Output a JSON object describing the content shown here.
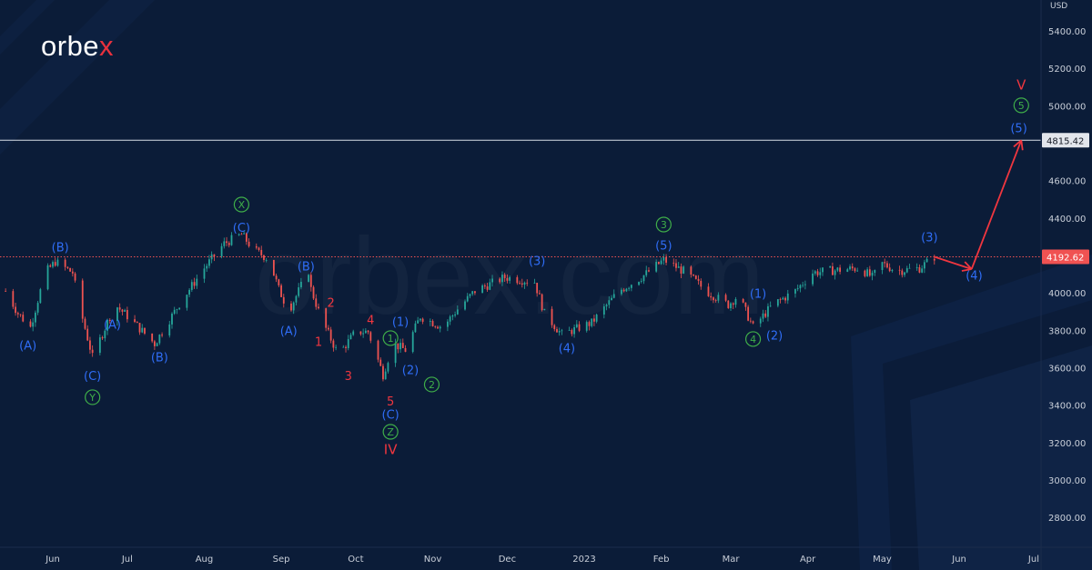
{
  "brand": {
    "logo_text": "orbe",
    "logo_accent": "x",
    "watermark": "orbex.com"
  },
  "colors": {
    "background": "#0b1c38",
    "up": "#26a69a",
    "down": "#ef5350",
    "blue_label": "#2f6df6",
    "green_label": "#3fae49",
    "red_label": "#f0363f",
    "last_price": "#f05252",
    "target": "#d8dde6"
  },
  "chart_data": {
    "type": "candlestick",
    "currency_label": "USD",
    "ylim": [
      2700,
      5500
    ],
    "y_ticks": [
      5400,
      5200,
      5000,
      4600,
      4400,
      4000,
      3800,
      3600,
      3400,
      3200,
      3000,
      2800
    ],
    "y_tick_labels": [
      "5400.00",
      "5200.00",
      "5000.00",
      "4600.00",
      "4400.00",
      "4000.00",
      "3800.00",
      "3600.00",
      "3400.00",
      "3200.00",
      "3000.00",
      "2800.00"
    ],
    "x_ticks": [
      {
        "date": "2022-06-01",
        "label": "Jun"
      },
      {
        "date": "2022-07-01",
        "label": "Jul"
      },
      {
        "date": "2022-08-01",
        "label": "Aug"
      },
      {
        "date": "2022-09-01",
        "label": "Sep"
      },
      {
        "date": "2022-10-01",
        "label": "Oct"
      },
      {
        "date": "2022-11-01",
        "label": "Nov"
      },
      {
        "date": "2022-12-01",
        "label": "Dec"
      },
      {
        "date": "2023-01-01",
        "label": "2023"
      },
      {
        "date": "2023-02-01",
        "label": "Feb"
      },
      {
        "date": "2023-03-01",
        "label": "Mar"
      },
      {
        "date": "2023-04-01",
        "label": "Apr"
      },
      {
        "date": "2023-05-01",
        "label": "May"
      },
      {
        "date": "2023-06-01",
        "label": "Jun"
      },
      {
        "date": "2023-07-01",
        "label": "Jul"
      }
    ],
    "price_path": [
      [
        "2022-05-13",
        4010
      ],
      [
        "2022-05-18",
        3890
      ],
      [
        "2022-05-23",
        3816
      ],
      [
        "2022-05-29",
        4108
      ],
      [
        "2022-06-02",
        4166
      ],
      [
        "2022-06-09",
        4108
      ],
      [
        "2022-06-12",
        3913
      ],
      [
        "2022-06-17",
        3656
      ],
      [
        "2022-06-26",
        3937
      ],
      [
        "2022-07-02",
        3864
      ],
      [
        "2022-07-12",
        3728
      ],
      [
        "2022-07-23",
        3962
      ],
      [
        "2022-08-01",
        4132
      ],
      [
        "2022-08-09",
        4263
      ],
      [
        "2022-08-16",
        4312
      ],
      [
        "2022-08-21",
        4229
      ],
      [
        "2022-08-27",
        4180
      ],
      [
        "2022-08-31",
        4020
      ],
      [
        "2022-09-04",
        3903
      ],
      [
        "2022-09-12",
        4117
      ],
      [
        "2022-09-13",
        4020
      ],
      [
        "2022-09-17",
        3864
      ],
      [
        "2022-09-24",
        3670
      ],
      [
        "2022-10-01",
        3792
      ],
      [
        "2022-10-06",
        3792
      ],
      [
        "2022-10-12",
        3563
      ],
      [
        "2022-10-16",
        3729
      ],
      [
        "2022-10-21",
        3694
      ],
      [
        "2022-10-27",
        3874
      ],
      [
        "2022-11-05",
        3816
      ],
      [
        "2022-11-11",
        3913
      ],
      [
        "2022-11-18",
        4010
      ],
      [
        "2022-11-30",
        4083
      ],
      [
        "2022-12-12",
        4059
      ],
      [
        "2022-12-16",
        3889
      ],
      [
        "2022-12-23",
        3777
      ],
      [
        "2023-01-04",
        3840
      ],
      [
        "2023-01-15",
        4010
      ],
      [
        "2023-01-24",
        4083
      ],
      [
        "2023-02-02",
        4176
      ],
      [
        "2023-02-11",
        4108
      ],
      [
        "2023-02-19",
        4010
      ],
      [
        "2023-02-28",
        3937
      ],
      [
        "2023-03-04",
        3986
      ],
      [
        "2023-03-10",
        3816
      ],
      [
        "2023-03-18",
        3937
      ],
      [
        "2023-03-27",
        4010
      ],
      [
        "2023-04-03",
        4108
      ],
      [
        "2023-04-13",
        4122
      ],
      [
        "2023-04-22",
        4132
      ],
      [
        "2023-04-27",
        4083
      ],
      [
        "2023-05-01",
        4156
      ],
      [
        "2023-05-07",
        4117
      ],
      [
        "2023-05-16",
        4132
      ],
      [
        "2023-05-22",
        4192.62
      ]
    ],
    "last_price": {
      "value": 4192.62,
      "label": "4192.62"
    },
    "target_level": {
      "value": 4815.42,
      "label": "4815.42"
    },
    "projection": [
      [
        "2023-05-22",
        4192.62
      ],
      [
        "2023-06-06",
        4127
      ],
      [
        "2023-06-26",
        4815.42
      ]
    ],
    "wave_labels": [
      {
        "text": "(A)",
        "date": "2022-05-22",
        "price": 3719,
        "style": "blue"
      },
      {
        "text": "(B)",
        "date": "2022-06-04",
        "price": 4244,
        "style": "blue"
      },
      {
        "text": "(C)",
        "date": "2022-06-17",
        "price": 3558,
        "style": "blue"
      },
      {
        "text": "Y",
        "date": "2022-06-17",
        "price": 3442,
        "style": "green-circle"
      },
      {
        "text": "(A)",
        "date": "2022-06-25",
        "price": 3831,
        "style": "blue"
      },
      {
        "text": "(B)",
        "date": "2022-07-14",
        "price": 3656,
        "style": "blue"
      },
      {
        "text": "(C)",
        "date": "2022-08-16",
        "price": 4350,
        "style": "blue"
      },
      {
        "text": "X",
        "date": "2022-08-16",
        "price": 4472,
        "style": "green-circle"
      },
      {
        "text": "(B)",
        "date": "2022-09-11",
        "price": 4142,
        "style": "blue"
      },
      {
        "text": "(A)",
        "date": "2022-09-04",
        "price": 3797,
        "style": "blue"
      },
      {
        "text": "2",
        "date": "2022-09-21",
        "price": 3947,
        "style": "red"
      },
      {
        "text": "1",
        "date": "2022-09-16",
        "price": 3738,
        "style": "red"
      },
      {
        "text": "3",
        "date": "2022-09-28",
        "price": 3558,
        "style": "red"
      },
      {
        "text": "4",
        "date": "2022-10-07",
        "price": 3855,
        "style": "red"
      },
      {
        "text": "5",
        "date": "2022-10-15",
        "price": 3422,
        "style": "red"
      },
      {
        "text": "(1)",
        "date": "2022-10-19",
        "price": 3845,
        "style": "blue"
      },
      {
        "text": "1",
        "date": "2022-10-15",
        "price": 3758,
        "style": "green-circle"
      },
      {
        "text": "(2)",
        "date": "2022-10-23",
        "price": 3588,
        "style": "blue"
      },
      {
        "text": "2",
        "date": "2022-10-17",
        "price": 3510,
        "style": "green-circle"
      },
      {
        "text": "(C)",
        "date": "2022-10-15",
        "price": 3350,
        "style": "blue"
      },
      {
        "text": "Z",
        "date": "2022-10-15",
        "price": 3257,
        "style": "green-circle"
      },
      {
        "text": "IV",
        "date": "2022-10-15",
        "price": 3165,
        "style": "red"
      },
      {
        "text": "(3)",
        "date": "2022-12-13",
        "price": 4171,
        "style": "blue"
      },
      {
        "text": "(4)",
        "date": "2022-12-25",
        "price": 3704,
        "style": "blue"
      },
      {
        "text": "3",
        "date": "2023-02-02",
        "price": 4365,
        "style": "green-circle"
      },
      {
        "text": "(5)",
        "date": "2023-02-02",
        "price": 4253,
        "style": "blue"
      },
      {
        "text": "(1)",
        "date": "2023-03-12",
        "price": 3996,
        "style": "blue"
      },
      {
        "text": "4",
        "date": "2023-03-10",
        "price": 3753,
        "style": "green-circle"
      },
      {
        "text": "(2)",
        "date": "2023-03-13",
        "price": 3772,
        "style": "blue"
      },
      {
        "text": "(3)",
        "date": "2023-05-20",
        "price": 4297,
        "style": "blue"
      },
      {
        "text": "(4)",
        "date": "2023-06-07",
        "price": 4093,
        "style": "blue"
      },
      {
        "text": "(5)",
        "date": "2023-06-25",
        "price": 4880,
        "style": "blue"
      },
      {
        "text": "5",
        "date": "2023-06-26",
        "price": 5002,
        "style": "green-circle"
      },
      {
        "text": "V",
        "date": "2023-06-26",
        "price": 5113,
        "style": "red"
      }
    ]
  }
}
